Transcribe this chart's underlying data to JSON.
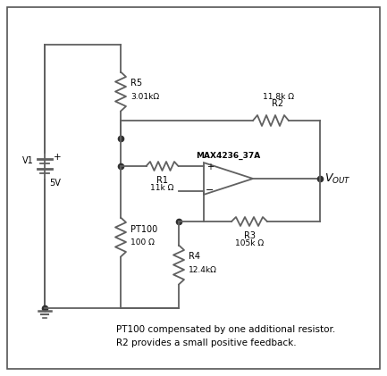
{
  "background_color": "#ffffff",
  "border_color": "#555555",
  "line_color": "#606060",
  "text_color": "#000000",
  "caption_line1": "PT100 compensated by one additional resistor.",
  "caption_line2": "R2 provides a small positive feedback.",
  "R5_label": "R5",
  "R5_value": "3.01kΩ",
  "R2_label": "R2",
  "R2_value": "11.8k Ω",
  "R1_label": "R1",
  "R1_value": "11k Ω",
  "R3_label": "R3",
  "R3_value": "105k Ω",
  "R4_label": "R4",
  "R4_value": "12.4kΩ",
  "PT100_label": "PT100",
  "PT100_value": "100 Ω",
  "opamp_label": "MAX4236_37A",
  "V1_label": "V1",
  "V1_value": "5V",
  "Vout_label": "V"
}
